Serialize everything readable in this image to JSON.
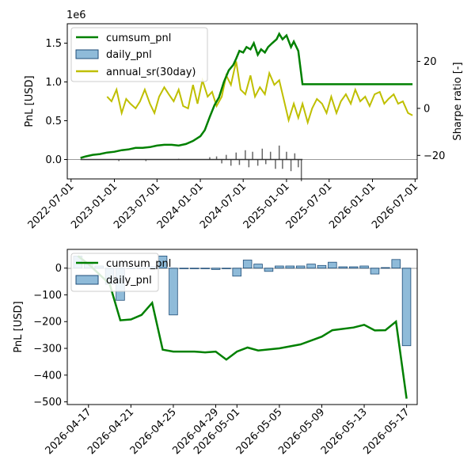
{
  "chart_data": [
    {
      "type": "line",
      "title": "",
      "ylabel": "PnL [USD]",
      "y2label": "Sharpe ratio [-]",
      "y_offset_label": "1e6",
      "x_ticks": [
        "2022-07-01",
        "2023-01-01",
        "2023-07-01",
        "2024-01-01",
        "2024-07-01",
        "2025-01-01",
        "2025-07-01",
        "2026-01-01",
        "2026-07-01"
      ],
      "y_ticks": [
        0.0,
        0.5,
        1.0,
        1.5
      ],
      "y_tick_labels": [
        "0.0",
        "0.5",
        "1.0",
        "1.5"
      ],
      "ylim": [
        -0.25,
        1.75
      ],
      "y2_ticks": [
        -20,
        0,
        20
      ],
      "y2_tick_labels": [
        "−20",
        "0",
        "20"
      ],
      "y2lim": [
        -30,
        36
      ],
      "xlim": [
        "2022-06-15",
        "2026-07-10"
      ],
      "legend_position": "top-left",
      "legend": [
        "cumsum_pnl",
        "daily_pnl",
        "annual_sr(30day)"
      ],
      "colors": {
        "cumsum_pnl": "#008000",
        "daily_pnl": "#1f77b4",
        "annual_sr": "#bfbf00"
      },
      "series": [
        {
          "name": "cumsum_pnl",
          "axis": "left",
          "points": [
            [
              "2022-08-10",
              0.02
            ],
            [
              "2022-09-01",
              0.04
            ],
            [
              "2022-10-01",
              0.06
            ],
            [
              "2022-11-01",
              0.07
            ],
            [
              "2022-12-01",
              0.09
            ],
            [
              "2023-01-01",
              0.1
            ],
            [
              "2023-02-01",
              0.12
            ],
            [
              "2023-03-01",
              0.13
            ],
            [
              "2023-04-01",
              0.15
            ],
            [
              "2023-05-01",
              0.15
            ],
            [
              "2023-06-01",
              0.16
            ],
            [
              "2023-07-01",
              0.18
            ],
            [
              "2023-08-01",
              0.19
            ],
            [
              "2023-09-01",
              0.19
            ],
            [
              "2023-10-01",
              0.18
            ],
            [
              "2023-11-01",
              0.2
            ],
            [
              "2023-12-01",
              0.24
            ],
            [
              "2024-01-01",
              0.3
            ],
            [
              "2024-01-20",
              0.38
            ],
            [
              "2024-02-10",
              0.55
            ],
            [
              "2024-03-01",
              0.7
            ],
            [
              "2024-03-20",
              0.8
            ],
            [
              "2024-04-10",
              1.0
            ],
            [
              "2024-05-01",
              1.15
            ],
            [
              "2024-05-20",
              1.22
            ],
            [
              "2024-06-01",
              1.3
            ],
            [
              "2024-06-15",
              1.4
            ],
            [
              "2024-07-01",
              1.38
            ],
            [
              "2024-07-15",
              1.45
            ],
            [
              "2024-08-01",
              1.42
            ],
            [
              "2024-08-15",
              1.5
            ],
            [
              "2024-09-01",
              1.35
            ],
            [
              "2024-09-15",
              1.42
            ],
            [
              "2024-10-01",
              1.38
            ],
            [
              "2024-10-15",
              1.45
            ],
            [
              "2024-11-01",
              1.5
            ],
            [
              "2024-11-20",
              1.55
            ],
            [
              "2024-12-01",
              1.62
            ],
            [
              "2024-12-15",
              1.55
            ],
            [
              "2025-01-01",
              1.6
            ],
            [
              "2025-01-20",
              1.45
            ],
            [
              "2025-02-01",
              1.52
            ],
            [
              "2025-02-20",
              1.4
            ],
            [
              "2025-03-10",
              0.97
            ],
            [
              "2025-06-01",
              0.97
            ],
            [
              "2026-01-01",
              0.97
            ],
            [
              "2026-06-20",
              0.97
            ]
          ]
        },
        {
          "name": "annual_sr(30day)",
          "axis": "right",
          "points": [
            [
              "2022-12-01",
              5
            ],
            [
              "2022-12-20",
              3
            ],
            [
              "2023-01-10",
              8
            ],
            [
              "2023-02-01",
              -2
            ],
            [
              "2023-02-20",
              4
            ],
            [
              "2023-03-10",
              2
            ],
            [
              "2023-04-01",
              0
            ],
            [
              "2023-04-20",
              3
            ],
            [
              "2023-05-10",
              8
            ],
            [
              "2023-06-01",
              2
            ],
            [
              "2023-06-20",
              -2
            ],
            [
              "2023-07-10",
              5
            ],
            [
              "2023-08-01",
              9
            ],
            [
              "2023-08-20",
              6
            ],
            [
              "2023-09-10",
              3
            ],
            [
              "2023-10-01",
              8
            ],
            [
              "2023-10-20",
              1
            ],
            [
              "2023-11-10",
              0
            ],
            [
              "2023-12-01",
              10
            ],
            [
              "2023-12-20",
              2
            ],
            [
              "2024-01-10",
              12
            ],
            [
              "2024-02-01",
              5
            ],
            [
              "2024-02-20",
              7
            ],
            [
              "2024-03-10",
              1
            ],
            [
              "2024-04-01",
              5
            ],
            [
              "2024-04-20",
              14
            ],
            [
              "2024-05-10",
              10
            ],
            [
              "2024-06-01",
              20
            ],
            [
              "2024-06-20",
              8
            ],
            [
              "2024-07-10",
              6
            ],
            [
              "2024-08-01",
              14
            ],
            [
              "2024-08-20",
              5
            ],
            [
              "2024-09-10",
              9
            ],
            [
              "2024-10-01",
              6
            ],
            [
              "2024-10-20",
              15
            ],
            [
              "2024-11-10",
              10
            ],
            [
              "2024-12-01",
              12
            ],
            [
              "2024-12-20",
              4
            ],
            [
              "2025-01-10",
              -5
            ],
            [
              "2025-02-01",
              2
            ],
            [
              "2025-02-20",
              -4
            ],
            [
              "2025-03-10",
              2
            ],
            [
              "2025-04-01",
              -6
            ],
            [
              "2025-04-20",
              0
            ],
            [
              "2025-05-10",
              4
            ],
            [
              "2025-06-01",
              2
            ],
            [
              "2025-06-20",
              -2
            ],
            [
              "2025-07-10",
              5
            ],
            [
              "2025-08-01",
              -2
            ],
            [
              "2025-08-20",
              3
            ],
            [
              "2025-09-10",
              6
            ],
            [
              "2025-10-01",
              2
            ],
            [
              "2025-10-20",
              8
            ],
            [
              "2025-11-10",
              3
            ],
            [
              "2025-12-01",
              5
            ],
            [
              "2025-12-20",
              1
            ],
            [
              "2026-01-10",
              6
            ],
            [
              "2026-02-01",
              7
            ],
            [
              "2026-02-20",
              2
            ],
            [
              "2026-03-10",
              4
            ],
            [
              "2026-04-01",
              6
            ],
            [
              "2026-04-20",
              2
            ],
            [
              "2026-05-10",
              3
            ],
            [
              "2026-06-01",
              -2
            ],
            [
              "2026-06-20",
              -3
            ]
          ]
        },
        {
          "name": "daily_pnl",
          "axis": "left",
          "type": "bar",
          "points": [
            [
              "2023-01-20",
              -0.02
            ],
            [
              "2023-05-15",
              -0.02
            ],
            [
              "2023-10-01",
              0.01
            ],
            [
              "2024-02-10",
              0.03
            ],
            [
              "2024-03-10",
              0.04
            ],
            [
              "2024-04-01",
              -0.05
            ],
            [
              "2024-04-20",
              0.06
            ],
            [
              "2024-05-10",
              -0.08
            ],
            [
              "2024-06-01",
              0.09
            ],
            [
              "2024-06-15",
              -0.07
            ],
            [
              "2024-07-10",
              0.12
            ],
            [
              "2024-07-25",
              -0.1
            ],
            [
              "2024-08-10",
              0.1
            ],
            [
              "2024-09-01",
              -0.08
            ],
            [
              "2024-09-20",
              0.14
            ],
            [
              "2024-10-05",
              -0.06
            ],
            [
              "2024-10-25",
              0.1
            ],
            [
              "2024-11-15",
              -0.12
            ],
            [
              "2024-12-01",
              0.18
            ],
            [
              "2024-12-15",
              -0.12
            ],
            [
              "2025-01-01",
              0.1
            ],
            [
              "2025-01-20",
              -0.15
            ],
            [
              "2025-02-05",
              0.08
            ],
            [
              "2025-02-20",
              -0.1
            ],
            [
              "2025-03-05",
              -0.28
            ]
          ]
        }
      ]
    },
    {
      "type": "bar",
      "title": "",
      "ylabel": "PnL [USD]",
      "x_ticks": [
        "2026-04-17",
        "2026-04-21",
        "2026-04-25",
        "2026-04-29",
        "2026-05-01",
        "2026-05-05",
        "2026-05-09",
        "2026-05-13",
        "2026-05-17"
      ],
      "xlim": [
        "2026-04-15",
        "2026-05-18"
      ],
      "y_ticks": [
        0,
        -100,
        -200,
        -300,
        -400,
        -500
      ],
      "y_tick_labels": [
        "0",
        "−100",
        "−200",
        "−300",
        "−400",
        "−500"
      ],
      "ylim": [
        -510,
        70
      ],
      "legend_position": "top-left",
      "legend": [
        "cumsum_pnl",
        "daily_pnl"
      ],
      "series": [
        {
          "name": "daily_pnl",
          "type": "bar",
          "points": [
            [
              "2026-04-16",
              45
            ],
            [
              "2026-04-17",
              15
            ],
            [
              "2026-04-18",
              8
            ],
            [
              "2026-04-19",
              -60
            ],
            [
              "2026-04-20",
              -120
            ],
            [
              "2026-04-21",
              -2
            ],
            [
              "2026-04-22",
              -2
            ],
            [
              "2026-04-23",
              5
            ],
            [
              "2026-04-24",
              45
            ],
            [
              "2026-04-25",
              -175
            ],
            [
              "2026-04-26",
              -2
            ],
            [
              "2026-04-27",
              -2
            ],
            [
              "2026-04-28",
              -2
            ],
            [
              "2026-04-29",
              -5
            ],
            [
              "2026-04-30",
              -2
            ],
            [
              "2026-05-01",
              -30
            ],
            [
              "2026-05-02",
              30
            ],
            [
              "2026-05-03",
              15
            ],
            [
              "2026-05-04",
              -12
            ],
            [
              "2026-05-05",
              8
            ],
            [
              "2026-05-06",
              8
            ],
            [
              "2026-05-07",
              8
            ],
            [
              "2026-05-08",
              15
            ],
            [
              "2026-05-09",
              10
            ],
            [
              "2026-05-10",
              22
            ],
            [
              "2026-05-11",
              5
            ],
            [
              "2026-05-12",
              5
            ],
            [
              "2026-05-13",
              8
            ],
            [
              "2026-05-14",
              -22
            ],
            [
              "2026-05-15",
              2
            ],
            [
              "2026-05-16",
              32
            ],
            [
              "2026-05-17",
              -290
            ]
          ]
        },
        {
          "name": "cumsum_pnl",
          "type": "line",
          "points": [
            [
              "2026-04-16",
              45
            ],
            [
              "2026-04-17",
              15
            ],
            [
              "2026-04-19",
              -60
            ],
            [
              "2026-04-20",
              -195
            ],
            [
              "2026-04-21",
              -192
            ],
            [
              "2026-04-22",
              -175
            ],
            [
              "2026-04-23",
              -130
            ],
            [
              "2026-04-24",
              -305
            ],
            [
              "2026-04-25",
              -312
            ],
            [
              "2026-04-27",
              -312
            ],
            [
              "2026-04-28",
              -315
            ],
            [
              "2026-04-29",
              -312
            ],
            [
              "2026-04-30",
              -342
            ],
            [
              "2026-05-01",
              -312
            ],
            [
              "2026-05-02",
              -297
            ],
            [
              "2026-05-03",
              -308
            ],
            [
              "2026-05-05",
              -300
            ],
            [
              "2026-05-07",
              -285
            ],
            [
              "2026-05-09",
              -256
            ],
            [
              "2026-05-10",
              -232
            ],
            [
              "2026-05-12",
              -222
            ],
            [
              "2026-05-13",
              -212
            ],
            [
              "2026-05-14",
              -233
            ],
            [
              "2026-05-15",
              -232
            ],
            [
              "2026-05-16",
              -200
            ],
            [
              "2026-05-17",
              -488
            ]
          ]
        }
      ]
    }
  ]
}
